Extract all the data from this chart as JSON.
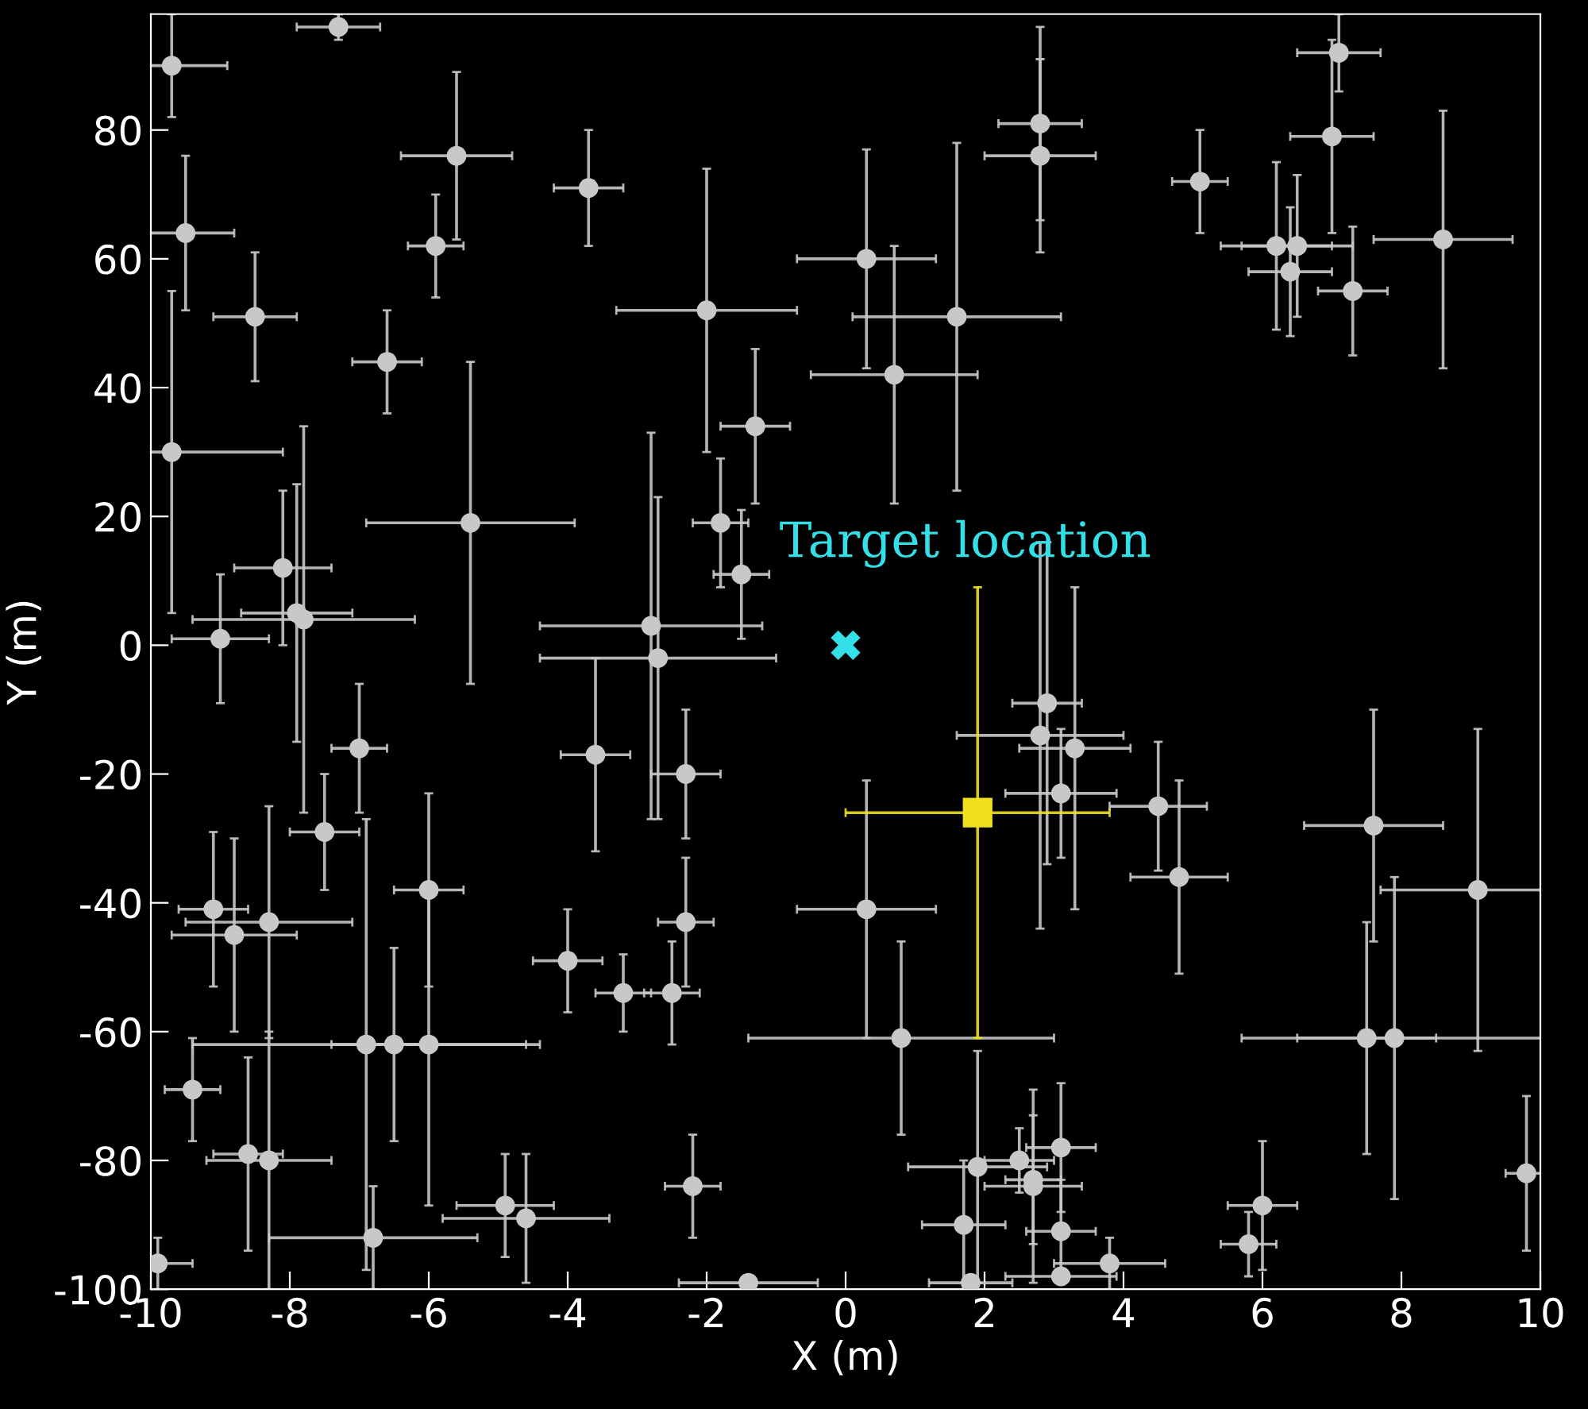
{
  "chart_data": {
    "type": "scatter",
    "xlabel": "X (m)",
    "ylabel": "Y (m)",
    "xlim": [
      -10,
      10
    ],
    "ylim": [
      -100,
      98
    ],
    "xticks": [
      -10,
      -8,
      -6,
      -4,
      -2,
      0,
      2,
      4,
      6,
      8,
      10
    ],
    "yticks": [
      -100,
      -80,
      -60,
      -40,
      -20,
      0,
      20,
      40,
      60,
      80
    ],
    "grid": false,
    "legend": false,
    "annotations": [
      {
        "text": "Target location",
        "x": 0,
        "y": 0
      }
    ],
    "series": [
      {
        "color": "#c8c8c8",
        "marker": "circle",
        "x": [
          -9.7,
          -7.3,
          -9.5,
          -8.5,
          -6.6,
          -5.6,
          -5.9,
          -3.7,
          -9.7,
          -5.4,
          -8.1,
          -9.0,
          -7.9,
          -7.8,
          -7.0,
          -7.5,
          -9.1,
          -8.8,
          -8.3,
          -6.0,
          -9.4,
          -6.9,
          -6.5,
          -6.0,
          -8.6,
          -8.3,
          -6.8,
          -9.9,
          -4.9,
          -4.6,
          -4.0,
          -3.6,
          -3.2,
          -2.5,
          -2.8,
          -2.7,
          -2.3,
          -2.3,
          -2.2,
          -1.4,
          -2.0,
          -1.3,
          -1.8,
          -1.5,
          0.3,
          0.7,
          1.6,
          0.3,
          0.8,
          2.8,
          2.8,
          5.1,
          7.1,
          7.0,
          6.2,
          6.5,
          6.4,
          7.3,
          8.6,
          2.9,
          2.8,
          3.3,
          3.1,
          4.5,
          4.8,
          7.6,
          9.1,
          7.5,
          7.9,
          1.9,
          2.5,
          2.7,
          2.7,
          3.1,
          3.1,
          1.7,
          1.8,
          3.1,
          3.8,
          6.0,
          5.8,
          9.8
        ],
        "values": [
          90,
          96,
          64,
          51,
          44,
          76,
          62,
          71,
          30,
          19,
          12,
          1,
          5,
          4,
          -16,
          -29,
          -41,
          -45,
          -43,
          -38,
          -69,
          -62,
          -62,
          -62,
          -79,
          -80,
          -92,
          -96,
          -87,
          -89,
          -49,
          -17,
          -54,
          -54,
          3,
          -2,
          -20,
          -43,
          -84,
          -99,
          52,
          34,
          19,
          11,
          60,
          42,
          51,
          -41,
          -61,
          81,
          76,
          72,
          92,
          79,
          62,
          62,
          58,
          55,
          63,
          -9,
          -14,
          -16,
          -23,
          -25,
          -36,
          -28,
          -38,
          -61,
          -61,
          -81,
          -80,
          -83,
          -84,
          -78,
          -91,
          -90,
          -99,
          -98,
          -96,
          -87,
          -93,
          -82
        ],
        "xerrors": [
          0.8,
          0.6,
          0.7,
          0.6,
          0.5,
          0.8,
          0.4,
          0.5,
          1.6,
          1.5,
          0.7,
          0.7,
          0.8,
          1.6,
          0.4,
          0.5,
          0.5,
          0.9,
          1.2,
          0.5,
          0.4,
          2.5,
          0.4,
          1.4,
          0.5,
          0.9,
          1.5,
          0.5,
          0.7,
          1.2,
          0.5,
          0.5,
          0.4,
          0.4,
          1.6,
          1.7,
          0.5,
          0.4,
          0.4,
          1.0,
          1.3,
          0.5,
          0.4,
          0.4,
          1.0,
          1.2,
          1.5,
          1.0,
          2.2,
          0.6,
          0.8,
          0.4,
          0.6,
          0.6,
          0.8,
          0.8,
          0.6,
          0.5,
          1.0,
          0.5,
          1.2,
          0.8,
          0.8,
          0.7,
          0.7,
          1.0,
          1.4,
          1.0,
          2.2,
          1.0,
          0.5,
          0.4,
          0.7,
          0.5,
          0.5,
          0.6,
          0.6,
          0.8,
          0.8,
          0.5,
          0.4,
          0.3
        ],
        "errors": [
          8,
          2,
          12,
          10,
          8,
          13,
          8,
          9,
          25,
          25,
          12,
          10,
          20,
          30,
          10,
          9,
          12,
          15,
          18,
          15,
          8,
          35,
          15,
          25,
          15,
          20,
          8,
          4,
          8,
          10,
          8,
          15,
          6,
          8,
          30,
          25,
          10,
          10,
          8,
          null,
          22,
          12,
          10,
          10,
          17,
          20,
          27,
          20,
          15,
          15,
          15,
          8,
          6,
          15,
          13,
          11,
          10,
          10,
          20,
          25,
          30,
          25,
          10,
          10,
          15,
          18,
          25,
          18,
          25,
          18,
          5,
          10,
          15,
          10,
          8,
          10,
          null,
          null,
          4,
          10,
          5,
          12
        ]
      },
      {
        "color": "#33e0e8",
        "marker": "cross",
        "x": [
          0
        ],
        "values": [
          0
        ]
      },
      {
        "color": "#f0e020",
        "marker": "square",
        "x": [
          1.9
        ],
        "values": [
          -26
        ],
        "xerrors": [
          1.9
        ],
        "errors": [
          35
        ]
      }
    ]
  }
}
